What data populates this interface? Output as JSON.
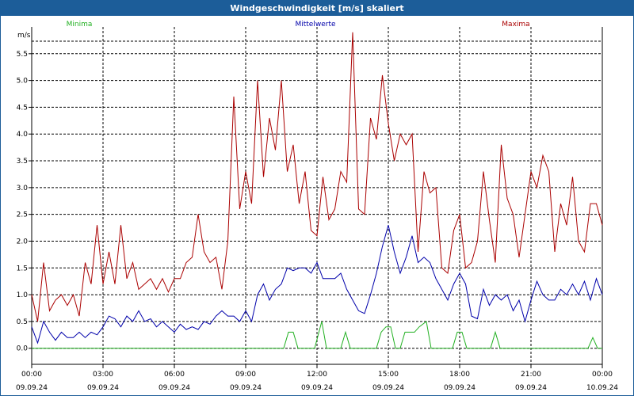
{
  "window": {
    "title": "Windgeschwindigkeit [m/s] skaliert"
  },
  "chart_data": {
    "type": "line",
    "title": "Windgeschwindigkeit [m/s] skaliert",
    "ylabel": "m/s",
    "xlabel": "",
    "ylim": [
      -0.3,
      6.0
    ],
    "xlim": [
      0,
      24
    ],
    "grid": true,
    "legend": "top",
    "y_ticks": [
      "0.0",
      "0.5",
      "1.0",
      "1.5",
      "2.0",
      "2.5",
      "3.0",
      "3.5",
      "4.0",
      "4.5",
      "5.0",
      "5.5"
    ],
    "x_ticks": [
      {
        "time": "00:00",
        "date": "09.09.24"
      },
      {
        "time": "03:00",
        "date": "09.09.24"
      },
      {
        "time": "06:00",
        "date": "09.09.24"
      },
      {
        "time": "09:00",
        "date": "09.09.24"
      },
      {
        "time": "12:00",
        "date": "09.09.24"
      },
      {
        "time": "15:00",
        "date": "09.09.24"
      },
      {
        "time": "18:00",
        "date": "09.09.24"
      },
      {
        "time": "21:00",
        "date": "09.09.24"
      },
      {
        "time": "00:00",
        "date": "10.09.24"
      }
    ],
    "series": [
      {
        "name": "Minima",
        "color": "#22b022",
        "x": [
          0,
          10.6,
          10.8,
          11.0,
          11.2,
          11.4,
          11.9,
          12.2,
          12.4,
          12.6,
          13.0,
          13.2,
          13.4,
          14.5,
          14.7,
          14.9,
          15.1,
          15.3,
          15.5,
          15.7,
          15.9,
          16.1,
          16.3,
          16.6,
          16.8,
          17.1,
          17.3,
          17.7,
          17.9,
          18.1,
          18.3,
          19.3,
          19.5,
          19.7,
          23.4,
          23.6,
          23.8,
          24.0
        ],
        "values": [
          0,
          0,
          0.3,
          0.3,
          0,
          0,
          0,
          0.5,
          0,
          0,
          0,
          0.3,
          0,
          0,
          0.3,
          0.4,
          0.4,
          0,
          0,
          0.3,
          0.3,
          0.3,
          0.4,
          0.5,
          0,
          0,
          0,
          0,
          0.3,
          0.3,
          0,
          0,
          0.3,
          0,
          0,
          0.2,
          0,
          0
        ]
      },
      {
        "name": "Mittelwerte",
        "color": "#0000aa",
        "x": [
          0,
          0.25,
          0.5,
          0.75,
          1.0,
          1.25,
          1.5,
          1.75,
          2.0,
          2.25,
          2.5,
          2.75,
          3.0,
          3.25,
          3.5,
          3.75,
          4.0,
          4.25,
          4.5,
          4.75,
          5.0,
          5.25,
          5.5,
          5.75,
          6.0,
          6.25,
          6.5,
          6.75,
          7.0,
          7.25,
          7.5,
          7.75,
          8.0,
          8.25,
          8.5,
          8.75,
          9.0,
          9.25,
          9.5,
          9.75,
          10.0,
          10.25,
          10.5,
          10.75,
          11.0,
          11.25,
          11.5,
          11.75,
          12.0,
          12.25,
          12.5,
          12.75,
          13.0,
          13.25,
          13.5,
          13.75,
          14.0,
          14.25,
          14.5,
          14.75,
          15.0,
          15.25,
          15.5,
          15.75,
          16.0,
          16.25,
          16.5,
          16.75,
          17.0,
          17.25,
          17.5,
          17.75,
          18.0,
          18.25,
          18.5,
          18.75,
          19.0,
          19.25,
          19.5,
          19.75,
          20.0,
          20.25,
          20.5,
          20.75,
          21.0,
          21.25,
          21.5,
          21.75,
          22.0,
          22.25,
          22.5,
          22.75,
          23.0,
          23.25,
          23.5,
          23.75,
          24.0
        ],
        "values": [
          0.4,
          0.1,
          0.5,
          0.3,
          0.15,
          0.3,
          0.2,
          0.2,
          0.3,
          0.2,
          0.3,
          0.25,
          0.4,
          0.6,
          0.55,
          0.4,
          0.6,
          0.5,
          0.7,
          0.5,
          0.55,
          0.4,
          0.5,
          0.4,
          0.3,
          0.45,
          0.35,
          0.4,
          0.35,
          0.5,
          0.45,
          0.6,
          0.7,
          0.6,
          0.6,
          0.5,
          0.7,
          0.5,
          1.0,
          1.2,
          0.9,
          1.1,
          1.2,
          1.5,
          1.45,
          1.5,
          1.5,
          1.4,
          1.6,
          1.3,
          1.3,
          1.3,
          1.4,
          1.1,
          0.9,
          0.7,
          0.65,
          1.0,
          1.4,
          1.9,
          2.3,
          1.8,
          1.4,
          1.7,
          2.1,
          1.6,
          1.7,
          1.6,
          1.3,
          1.1,
          0.9,
          1.2,
          1.4,
          1.2,
          0.6,
          0.55,
          1.1,
          0.8,
          1.0,
          0.9,
          1.0,
          0.7,
          0.9,
          0.5,
          0.9,
          1.25,
          1.0,
          0.9,
          0.9,
          1.1,
          1.0,
          1.2,
          1.0,
          1.25,
          0.9,
          1.3,
          1.0
        ]
      },
      {
        "name": "Maxima",
        "color": "#aa0000",
        "x": [
          0,
          0.25,
          0.5,
          0.75,
          1.0,
          1.25,
          1.5,
          1.75,
          2.0,
          2.25,
          2.5,
          2.75,
          3.0,
          3.25,
          3.5,
          3.75,
          4.0,
          4.25,
          4.5,
          4.75,
          5.0,
          5.25,
          5.5,
          5.75,
          6.0,
          6.25,
          6.5,
          6.75,
          7.0,
          7.25,
          7.5,
          7.75,
          8.0,
          8.25,
          8.5,
          8.75,
          9.0,
          9.25,
          9.5,
          9.75,
          10.0,
          10.25,
          10.5,
          10.75,
          11.0,
          11.25,
          11.5,
          11.75,
          12.0,
          12.25,
          12.5,
          12.75,
          13.0,
          13.25,
          13.5,
          13.75,
          14.0,
          14.25,
          14.5,
          14.75,
          15.0,
          15.25,
          15.5,
          15.75,
          16.0,
          16.25,
          16.5,
          16.75,
          17.0,
          17.25,
          17.5,
          17.75,
          18.0,
          18.25,
          18.5,
          18.75,
          19.0,
          19.25,
          19.5,
          19.75,
          20.0,
          20.25,
          20.5,
          20.75,
          21.0,
          21.25,
          21.5,
          21.75,
          22.0,
          22.25,
          22.5,
          22.75,
          23.0,
          23.25,
          23.5,
          23.75,
          24.0
        ],
        "values": [
          1.0,
          0.5,
          1.6,
          0.7,
          0.9,
          1.0,
          0.8,
          1.0,
          0.6,
          1.6,
          1.2,
          2.3,
          1.2,
          1.8,
          1.2,
          2.3,
          1.3,
          1.6,
          1.1,
          1.2,
          1.3,
          1.1,
          1.3,
          1.05,
          1.3,
          1.3,
          1.6,
          1.7,
          2.5,
          1.8,
          1.6,
          1.7,
          1.1,
          2.0,
          4.7,
          2.6,
          3.3,
          2.7,
          5.0,
          3.2,
          4.3,
          3.7,
          5.0,
          3.3,
          3.8,
          2.7,
          3.3,
          2.2,
          2.1,
          3.2,
          2.4,
          2.6,
          3.3,
          3.1,
          5.9,
          2.6,
          2.5,
          4.3,
          3.9,
          5.1,
          4.2,
          3.5,
          4.0,
          3.8,
          4.0,
          1.8,
          3.3,
          2.9,
          3.0,
          1.5,
          1.4,
          2.2,
          2.5,
          1.5,
          1.6,
          2.0,
          3.3,
          2.4,
          1.6,
          3.8,
          2.8,
          2.5,
          1.7,
          2.5,
          3.3,
          3.0,
          3.6,
          3.3,
          1.8,
          2.7,
          2.3,
          3.2,
          2.0,
          1.8,
          2.7,
          2.7,
          2.3
        ]
      }
    ]
  }
}
